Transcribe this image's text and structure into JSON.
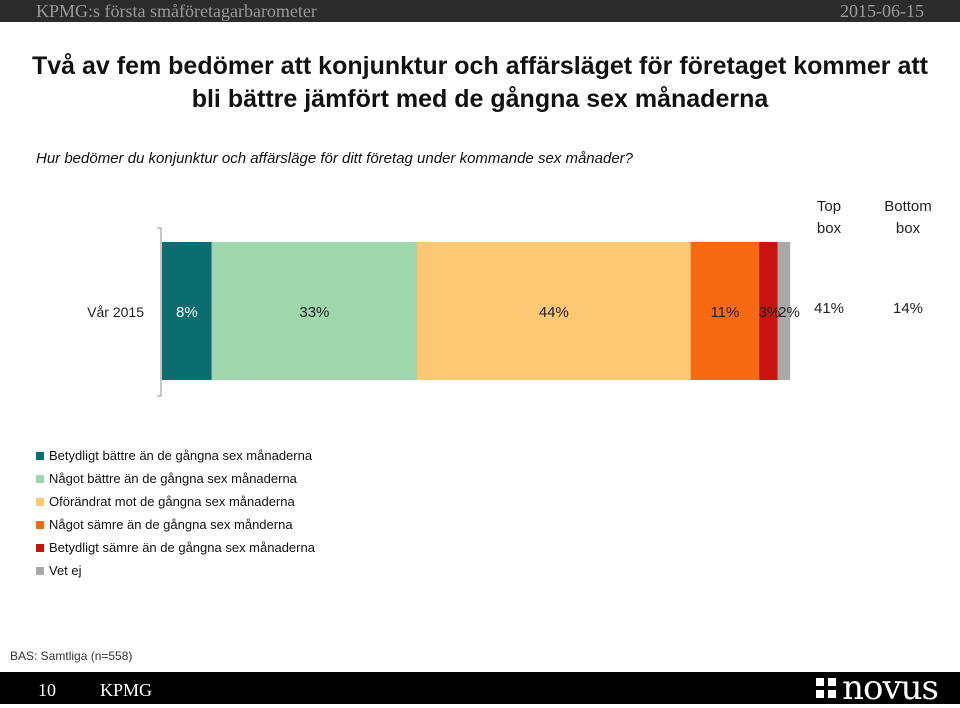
{
  "header": {
    "left": "KPMG:s första småföretagarbarometer",
    "right": "2015-06-15"
  },
  "title_line1": "Två av fem bedömer att konjunktur och affärsläget för företaget kommer att",
  "title_line2": "bli bättre jämfört med de gångna sex månaderna",
  "question": "Hur bedömer du konjunktur och affärsläge för ditt företag under kommande sex månader?",
  "chart_data": {
    "type": "bar",
    "orientation": "horizontal",
    "stacked": true,
    "categories": [
      "Vår 2015"
    ],
    "series": [
      {
        "name": "Betydligt bättre än de gångna sex månaderna",
        "values": [
          8
        ],
        "label": "8%",
        "color": "#0b6d6f",
        "label_color": "#ffffff"
      },
      {
        "name": "Något bättre än de gångna sex månaderna",
        "values": [
          33
        ],
        "label": "33%",
        "color": "#9fd6ad",
        "label_color": "#222222"
      },
      {
        "name": "Oförändrat mot de gångna sex månaderna",
        "values": [
          44
        ],
        "label": "44%",
        "color": "#fcc874",
        "label_color": "#222222"
      },
      {
        "name": "Något sämre än de gångna sex månderna",
        "values": [
          11
        ],
        "label": "11%",
        "color": "#f76a12",
        "label_color": "#222222"
      },
      {
        "name": "Betydligt sämre än de gångna sex månaderna",
        "values": [
          3
        ],
        "label": "3%",
        "color": "#c8140e",
        "label_color": "#222222"
      },
      {
        "name": "Vet ej",
        "values": [
          2
        ],
        "label": "2%",
        "color": "#a9a9a9",
        "label_color": "#222222"
      }
    ],
    "summary_columns": [
      {
        "header_line1": "Top",
        "header_line2": "box",
        "values": [
          "41%"
        ]
      },
      {
        "header_line1": "Bottom",
        "header_line2": "box",
        "values": [
          "14%"
        ]
      }
    ],
    "legend_position": "bottom-left"
  },
  "base_note": "BAS: Samtliga (n=558)",
  "footer": {
    "page_number": "10",
    "org": "KPMG",
    "logo": "novus"
  },
  "colors": {
    "topbar": "#2b2b2b",
    "footer": "#000000"
  }
}
